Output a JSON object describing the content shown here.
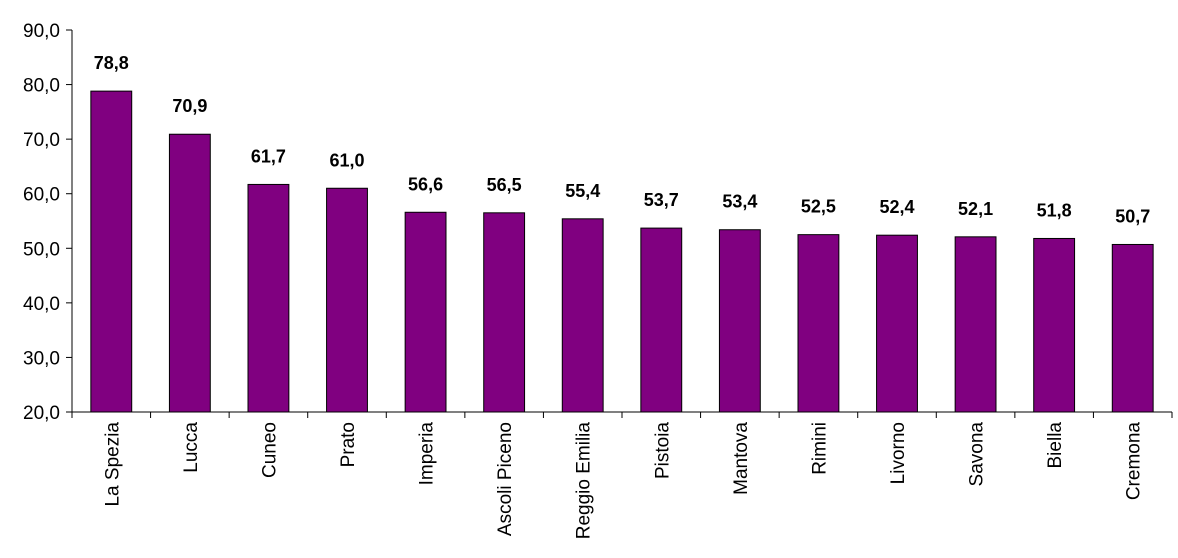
{
  "chart_data": {
    "type": "bar",
    "title": "",
    "xlabel": "",
    "ylabel": "",
    "ylim": [
      20,
      90
    ],
    "yticks": [
      "20,0",
      "30,0",
      "40,0",
      "50,0",
      "60,0",
      "70,0",
      "80,0",
      "90,0"
    ],
    "ytick_values": [
      20,
      30,
      40,
      50,
      60,
      70,
      80,
      90
    ],
    "grid": false,
    "legend": "none",
    "bar_color": "#800080",
    "categories": [
      "La Spezia",
      "Lucca",
      "Cuneo",
      "Prato",
      "Imperia",
      "Ascoli Piceno",
      "Reggio Emilia",
      "Pistoia",
      "Mantova",
      "Rimini",
      "Livorno",
      "Savona",
      "Biella",
      "Cremona"
    ],
    "values": [
      78.8,
      70.9,
      61.7,
      61.0,
      56.6,
      56.5,
      55.4,
      53.7,
      53.4,
      52.5,
      52.4,
      52.1,
      51.8,
      50.7
    ],
    "value_labels": [
      "78,8",
      "70,9",
      "61,7",
      "61,0",
      "56,6",
      "56,5",
      "55,4",
      "53,7",
      "53,4",
      "52,5",
      "52,4",
      "52,1",
      "51,8",
      "50,7"
    ]
  }
}
